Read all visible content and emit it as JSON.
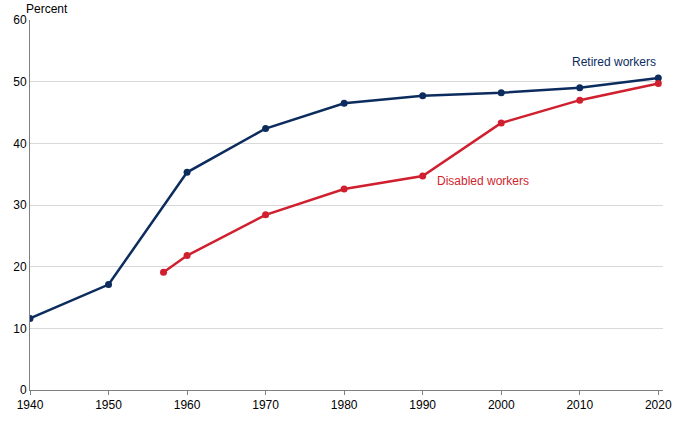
{
  "chart_data": {
    "type": "line",
    "y_label": "Percent",
    "series": [
      {
        "name": "Retired workers",
        "color": "#0c2c5e",
        "marker": "circle",
        "line_style": "solid",
        "x": [
          1940,
          1950,
          1960,
          1970,
          1980,
          1990,
          2000,
          2010,
          2020
        ],
        "values": [
          11.6,
          17.1,
          35.3,
          42.4,
          46.5,
          47.7,
          48.2,
          49.0,
          50.6
        ]
      },
      {
        "name": "Disabled workers",
        "color": "#d01f2e",
        "marker": "circle",
        "line_style": "solid",
        "x": [
          1957,
          1960,
          1970,
          1980,
          1990,
          2000,
          2010,
          2020
        ],
        "values": [
          19.1,
          21.8,
          28.4,
          32.6,
          34.7,
          43.3,
          47.0,
          49.7
        ]
      }
    ],
    "xlim": [
      1940,
      2020.6
    ],
    "xticks": [
      1940,
      1950,
      1960,
      1970,
      1980,
      1990,
      2000,
      2010,
      2020
    ],
    "ylim": [
      0,
      60
    ],
    "yticks": [
      0,
      10,
      20,
      30,
      40,
      50,
      60
    ],
    "grid": true
  }
}
